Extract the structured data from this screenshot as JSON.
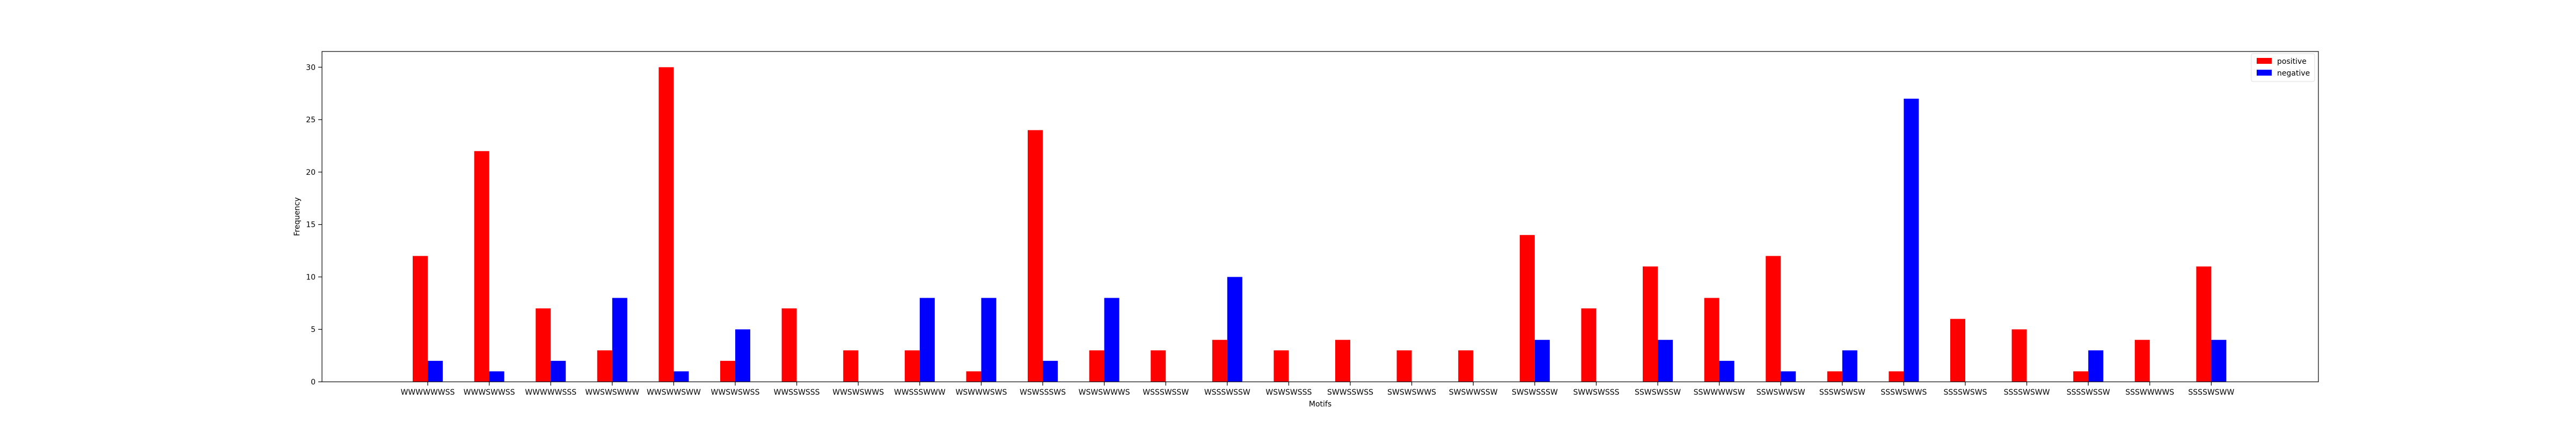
{
  "chart_data": {
    "type": "bar",
    "xlabel": "Motifs",
    "ylabel": "Frequency",
    "ylim": [
      0,
      31.5
    ],
    "yticks": [
      0,
      5,
      10,
      15,
      20,
      25,
      30
    ],
    "grid": false,
    "legend_position": "top-right",
    "categories": [
      "WWWWWWSS",
      "WWWSWWSS",
      "WWWWWSSS",
      "WWSWSWWW",
      "WWSWWSWW",
      "WWSWSWSS",
      "WWSSWSSS",
      "WWSWSWWS",
      "WWSSSWWW",
      "WSWWWSWS",
      "WSWSSSWS",
      "WSWSWWWS",
      "WSSSWSSW",
      "WSSSWSSW",
      "WSWSWSSS",
      "SWWSSWSS",
      "SWSWSWWS",
      "SWSWWSSW",
      "SWSWSSSW",
      "SWWSWSSS",
      "SSWSWSSW",
      "SSWWWWSW",
      "SSWSWWSW",
      "SSSWSWSW",
      "SSSWSWWS",
      "SSSSWSWS",
      "SSSSWSWW",
      "SSSSWSSW",
      "SSSWWWWS",
      "SSSSWSWW"
    ],
    "series": [
      {
        "name": "positive",
        "color": "#ff0000",
        "values": [
          12,
          22,
          7,
          3,
          30,
          2,
          7,
          3,
          3,
          1,
          24,
          3,
          3,
          4,
          3,
          4,
          3,
          3,
          14,
          7,
          11,
          8,
          12,
          1,
          1,
          6,
          5,
          1,
          4,
          11
        ]
      },
      {
        "name": "negative",
        "color": "#0000ff",
        "values": [
          2,
          1,
          2,
          8,
          1,
          5,
          0,
          0,
          8,
          8,
          2,
          8,
          0,
          10,
          0,
          0,
          0,
          0,
          4,
          0,
          4,
          2,
          1,
          3,
          27,
          0,
          0,
          3,
          0,
          4
        ]
      }
    ]
  }
}
